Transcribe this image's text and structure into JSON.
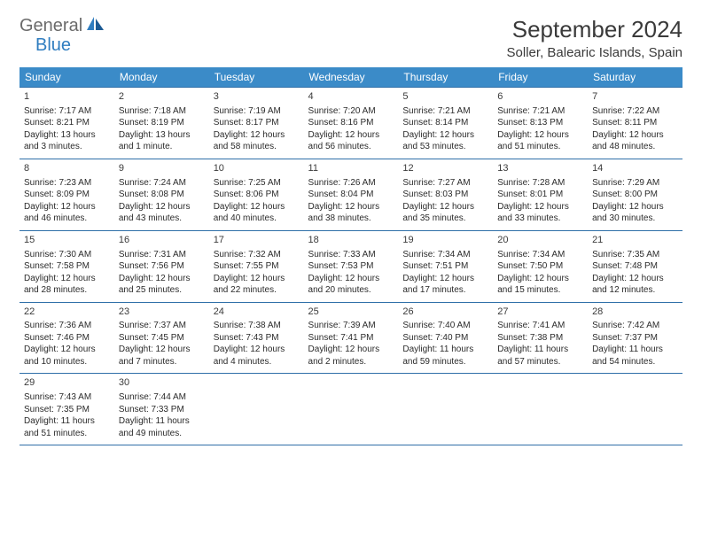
{
  "logo": {
    "text1": "General",
    "text2": "Blue"
  },
  "title": "September 2024",
  "location": "Soller, Balearic Islands, Spain",
  "colors": {
    "header_bg": "#3b8bc8",
    "header_text": "#ffffff",
    "border": "#2f6fa8",
    "logo_gray": "#6b6b6b",
    "logo_blue": "#2f7dc0",
    "body_text": "#2b2b2b"
  },
  "weekdays": [
    "Sunday",
    "Monday",
    "Tuesday",
    "Wednesday",
    "Thursday",
    "Friday",
    "Saturday"
  ],
  "days": [
    {
      "n": "1",
      "sunrise": "Sunrise: 7:17 AM",
      "sunset": "Sunset: 8:21 PM",
      "daylight": "Daylight: 13 hours and 3 minutes."
    },
    {
      "n": "2",
      "sunrise": "Sunrise: 7:18 AM",
      "sunset": "Sunset: 8:19 PM",
      "daylight": "Daylight: 13 hours and 1 minute."
    },
    {
      "n": "3",
      "sunrise": "Sunrise: 7:19 AM",
      "sunset": "Sunset: 8:17 PM",
      "daylight": "Daylight: 12 hours and 58 minutes."
    },
    {
      "n": "4",
      "sunrise": "Sunrise: 7:20 AM",
      "sunset": "Sunset: 8:16 PM",
      "daylight": "Daylight: 12 hours and 56 minutes."
    },
    {
      "n": "5",
      "sunrise": "Sunrise: 7:21 AM",
      "sunset": "Sunset: 8:14 PM",
      "daylight": "Daylight: 12 hours and 53 minutes."
    },
    {
      "n": "6",
      "sunrise": "Sunrise: 7:21 AM",
      "sunset": "Sunset: 8:13 PM",
      "daylight": "Daylight: 12 hours and 51 minutes."
    },
    {
      "n": "7",
      "sunrise": "Sunrise: 7:22 AM",
      "sunset": "Sunset: 8:11 PM",
      "daylight": "Daylight: 12 hours and 48 minutes."
    },
    {
      "n": "8",
      "sunrise": "Sunrise: 7:23 AM",
      "sunset": "Sunset: 8:09 PM",
      "daylight": "Daylight: 12 hours and 46 minutes."
    },
    {
      "n": "9",
      "sunrise": "Sunrise: 7:24 AM",
      "sunset": "Sunset: 8:08 PM",
      "daylight": "Daylight: 12 hours and 43 minutes."
    },
    {
      "n": "10",
      "sunrise": "Sunrise: 7:25 AM",
      "sunset": "Sunset: 8:06 PM",
      "daylight": "Daylight: 12 hours and 40 minutes."
    },
    {
      "n": "11",
      "sunrise": "Sunrise: 7:26 AM",
      "sunset": "Sunset: 8:04 PM",
      "daylight": "Daylight: 12 hours and 38 minutes."
    },
    {
      "n": "12",
      "sunrise": "Sunrise: 7:27 AM",
      "sunset": "Sunset: 8:03 PM",
      "daylight": "Daylight: 12 hours and 35 minutes."
    },
    {
      "n": "13",
      "sunrise": "Sunrise: 7:28 AM",
      "sunset": "Sunset: 8:01 PM",
      "daylight": "Daylight: 12 hours and 33 minutes."
    },
    {
      "n": "14",
      "sunrise": "Sunrise: 7:29 AM",
      "sunset": "Sunset: 8:00 PM",
      "daylight": "Daylight: 12 hours and 30 minutes."
    },
    {
      "n": "15",
      "sunrise": "Sunrise: 7:30 AM",
      "sunset": "Sunset: 7:58 PM",
      "daylight": "Daylight: 12 hours and 28 minutes."
    },
    {
      "n": "16",
      "sunrise": "Sunrise: 7:31 AM",
      "sunset": "Sunset: 7:56 PM",
      "daylight": "Daylight: 12 hours and 25 minutes."
    },
    {
      "n": "17",
      "sunrise": "Sunrise: 7:32 AM",
      "sunset": "Sunset: 7:55 PM",
      "daylight": "Daylight: 12 hours and 22 minutes."
    },
    {
      "n": "18",
      "sunrise": "Sunrise: 7:33 AM",
      "sunset": "Sunset: 7:53 PM",
      "daylight": "Daylight: 12 hours and 20 minutes."
    },
    {
      "n": "19",
      "sunrise": "Sunrise: 7:34 AM",
      "sunset": "Sunset: 7:51 PM",
      "daylight": "Daylight: 12 hours and 17 minutes."
    },
    {
      "n": "20",
      "sunrise": "Sunrise: 7:34 AM",
      "sunset": "Sunset: 7:50 PM",
      "daylight": "Daylight: 12 hours and 15 minutes."
    },
    {
      "n": "21",
      "sunrise": "Sunrise: 7:35 AM",
      "sunset": "Sunset: 7:48 PM",
      "daylight": "Daylight: 12 hours and 12 minutes."
    },
    {
      "n": "22",
      "sunrise": "Sunrise: 7:36 AM",
      "sunset": "Sunset: 7:46 PM",
      "daylight": "Daylight: 12 hours and 10 minutes."
    },
    {
      "n": "23",
      "sunrise": "Sunrise: 7:37 AM",
      "sunset": "Sunset: 7:45 PM",
      "daylight": "Daylight: 12 hours and 7 minutes."
    },
    {
      "n": "24",
      "sunrise": "Sunrise: 7:38 AM",
      "sunset": "Sunset: 7:43 PM",
      "daylight": "Daylight: 12 hours and 4 minutes."
    },
    {
      "n": "25",
      "sunrise": "Sunrise: 7:39 AM",
      "sunset": "Sunset: 7:41 PM",
      "daylight": "Daylight: 12 hours and 2 minutes."
    },
    {
      "n": "26",
      "sunrise": "Sunrise: 7:40 AM",
      "sunset": "Sunset: 7:40 PM",
      "daylight": "Daylight: 11 hours and 59 minutes."
    },
    {
      "n": "27",
      "sunrise": "Sunrise: 7:41 AM",
      "sunset": "Sunset: 7:38 PM",
      "daylight": "Daylight: 11 hours and 57 minutes."
    },
    {
      "n": "28",
      "sunrise": "Sunrise: 7:42 AM",
      "sunset": "Sunset: 7:37 PM",
      "daylight": "Daylight: 11 hours and 54 minutes."
    },
    {
      "n": "29",
      "sunrise": "Sunrise: 7:43 AM",
      "sunset": "Sunset: 7:35 PM",
      "daylight": "Daylight: 11 hours and 51 minutes."
    },
    {
      "n": "30",
      "sunrise": "Sunrise: 7:44 AM",
      "sunset": "Sunset: 7:33 PM",
      "daylight": "Daylight: 11 hours and 49 minutes."
    }
  ]
}
